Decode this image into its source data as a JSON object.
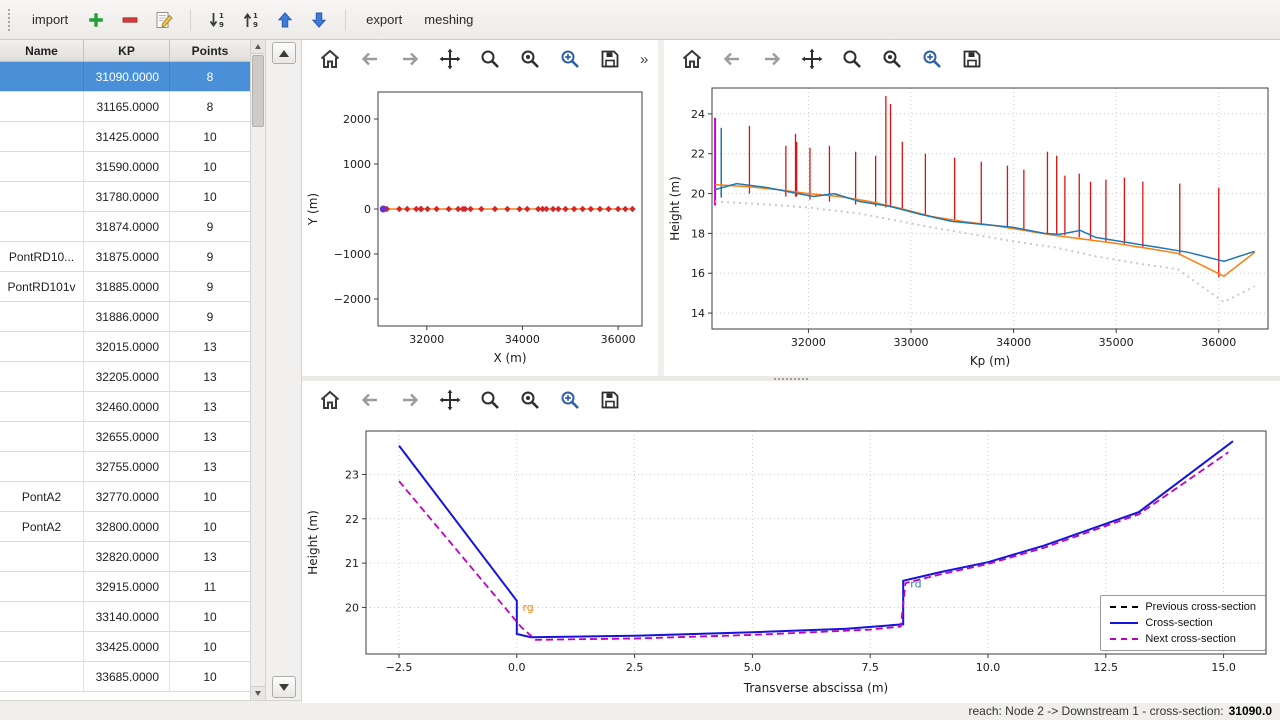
{
  "toolbar": {
    "import_label": "import",
    "export_label": "export",
    "meshing_label": "meshing"
  },
  "nav_toolbar": {
    "buttons": [
      "home",
      "back",
      "forward",
      "pan",
      "zoom",
      "subplots",
      "options",
      "save"
    ],
    "overflow": "»"
  },
  "table": {
    "columns": [
      "Name",
      "KP",
      "Points"
    ],
    "rows": [
      {
        "name": "",
        "kp": "31090.0000",
        "points": "8",
        "selected": true
      },
      {
        "name": "",
        "kp": "31165.0000",
        "points": "8",
        "selected": false
      },
      {
        "name": "",
        "kp": "31425.0000",
        "points": "10",
        "selected": false
      },
      {
        "name": "",
        "kp": "31590.0000",
        "points": "10",
        "selected": false
      },
      {
        "name": "",
        "kp": "31780.0000",
        "points": "10",
        "selected": false
      },
      {
        "name": "",
        "kp": "31874.0000",
        "points": "9",
        "selected": false
      },
      {
        "name": "PontRD10...",
        "kp": "31875.0000",
        "points": "9",
        "selected": false
      },
      {
        "name": "PontRD101v",
        "kp": "31885.0000",
        "points": "9",
        "selected": false
      },
      {
        "name": "",
        "kp": "31886.0000",
        "points": "9",
        "selected": false
      },
      {
        "name": "",
        "kp": "32015.0000",
        "points": "13",
        "selected": false
      },
      {
        "name": "",
        "kp": "32205.0000",
        "points": "13",
        "selected": false
      },
      {
        "name": "",
        "kp": "32460.0000",
        "points": "13",
        "selected": false
      },
      {
        "name": "",
        "kp": "32655.0000",
        "points": "13",
        "selected": false
      },
      {
        "name": "",
        "kp": "32755.0000",
        "points": "13",
        "selected": false
      },
      {
        "name": "PontA2",
        "kp": "32770.0000",
        "points": "10",
        "selected": false
      },
      {
        "name": "PontA2",
        "kp": "32800.0000",
        "points": "10",
        "selected": false
      },
      {
        "name": "",
        "kp": "32820.0000",
        "points": "13",
        "selected": false
      },
      {
        "name": "",
        "kp": "32915.0000",
        "points": "11",
        "selected": false
      },
      {
        "name": "",
        "kp": "33140.0000",
        "points": "10",
        "selected": false
      },
      {
        "name": "",
        "kp": "33425.0000",
        "points": "10",
        "selected": false
      },
      {
        "name": "",
        "kp": "33685.0000",
        "points": "10",
        "selected": false
      }
    ]
  },
  "chart_data": [
    {
      "id": "plan",
      "type": "line",
      "title": "",
      "xlabel": "X (m)",
      "ylabel": "Y (m)",
      "xlim": [
        30980,
        36500
      ],
      "ylim": [
        -2600,
        2600
      ],
      "xticks": [
        32000,
        34000,
        36000
      ],
      "xtick_labels": [
        "32000",
        "34000",
        "36000"
      ],
      "yticks": [
        -2000,
        -1000,
        0,
        1000,
        2000
      ],
      "ytick_labels": [
        "−2000",
        "−1000",
        "0",
        "1000",
        "2000"
      ],
      "grid": false,
      "series": [
        {
          "name": "river-axis",
          "color": "#ff7f0e",
          "width": 1.4,
          "x": [
            31090,
            31165,
            31425,
            31590,
            31780,
            31874,
            31885,
            32015,
            32205,
            32460,
            32655,
            32755,
            32800,
            32915,
            33140,
            33425,
            33685,
            33940,
            34100,
            34330,
            34420,
            34500,
            34640,
            34750,
            34900,
            35080,
            35260,
            35430,
            35620,
            35800,
            36000,
            36150,
            36300
          ],
          "y_const": 0,
          "marker": {
            "shape": "diamond",
            "color": "#d62728",
            "size": 3.2
          }
        },
        {
          "name": "selected-cross-section-point",
          "color": "none",
          "x": [
            31090
          ],
          "y": [
            0
          ],
          "marker": {
            "shape": "circle",
            "color": "#6633cc",
            "size": 3.5
          }
        }
      ]
    },
    {
      "id": "profile",
      "type": "line",
      "title": "",
      "xlabel": "Kp (m)",
      "ylabel": "Height (m)",
      "xlim": [
        31060,
        36480
      ],
      "ylim": [
        13.2,
        25.3
      ],
      "xticks": [
        32000,
        33000,
        34000,
        35000,
        36000
      ],
      "xtick_labels": [
        "32000",
        "33000",
        "34000",
        "35000",
        "36000"
      ],
      "yticks": [
        14,
        16,
        18,
        20,
        22,
        24
      ],
      "ytick_labels": [
        "14",
        "16",
        "18",
        "20",
        "22",
        "24"
      ],
      "grid": true,
      "segments": [
        {
          "x": 31090,
          "y0": 19.4,
          "y1": 23.8,
          "color": "#cc00cc",
          "width": 2
        },
        {
          "x": 31150,
          "y0": 19.8,
          "y1": 23.3,
          "color": "#1f77b4",
          "width": 1.5
        },
        {
          "x": 31425,
          "y0": 20.0,
          "y1": 23.4
        },
        {
          "x": 31780,
          "y0": 19.85,
          "y1": 22.4
        },
        {
          "x": 31874,
          "y0": 19.85,
          "y1": 23.0
        },
        {
          "x": 31885,
          "y0": 19.85,
          "y1": 22.6
        },
        {
          "x": 32015,
          "y0": 19.7,
          "y1": 22.3
        },
        {
          "x": 32205,
          "y0": 19.6,
          "y1": 22.4
        },
        {
          "x": 32460,
          "y0": 19.45,
          "y1": 22.1
        },
        {
          "x": 32655,
          "y0": 19.35,
          "y1": 21.9
        },
        {
          "x": 32755,
          "y0": 19.3,
          "y1": 24.9
        },
        {
          "x": 32800,
          "y0": 19.3,
          "y1": 24.5
        },
        {
          "x": 32915,
          "y0": 19.2,
          "y1": 22.6
        },
        {
          "x": 33140,
          "y0": 18.95,
          "y1": 22.0
        },
        {
          "x": 33425,
          "y0": 18.65,
          "y1": 21.8
        },
        {
          "x": 33685,
          "y0": 18.5,
          "y1": 21.6
        },
        {
          "x": 33940,
          "y0": 18.3,
          "y1": 21.4
        },
        {
          "x": 34100,
          "y0": 18.2,
          "y1": 21.2
        },
        {
          "x": 34330,
          "y0": 18.0,
          "y1": 22.1
        },
        {
          "x": 34420,
          "y0": 17.95,
          "y1": 21.9
        },
        {
          "x": 34500,
          "y0": 17.9,
          "y1": 20.9
        },
        {
          "x": 34640,
          "y0": 17.8,
          "y1": 21.0
        },
        {
          "x": 34750,
          "y0": 17.7,
          "y1": 20.6
        },
        {
          "x": 34900,
          "y0": 17.6,
          "y1": 20.7
        },
        {
          "x": 35080,
          "y0": 17.45,
          "y1": 20.8
        },
        {
          "x": 35260,
          "y0": 17.3,
          "y1": 20.6
        },
        {
          "x": 35620,
          "y0": 16.9,
          "y1": 20.5
        },
        {
          "x": 36000,
          "y0": 15.8,
          "y1": 20.3
        }
      ],
      "series": [
        {
          "name": "bed-dotted-line",
          "color": "#c9c9c9",
          "width": 2,
          "dash": "2,4",
          "x": [
            31090,
            31600,
            32000,
            32500,
            32800,
            33200,
            33600,
            34000,
            34400,
            34800,
            35200,
            35600,
            36050,
            36350
          ],
          "y": [
            19.6,
            19.45,
            19.3,
            19.0,
            18.7,
            18.3,
            17.95,
            17.6,
            17.3,
            16.85,
            16.5,
            16.2,
            14.55,
            15.35
          ]
        },
        {
          "name": "bank-line-orange",
          "color": "#ff7f0e",
          "width": 1.5,
          "x": [
            31090,
            31400,
            31700,
            32000,
            32300,
            32600,
            32900,
            33200,
            33500,
            33800,
            34100,
            34400,
            34700,
            35000,
            35300,
            35600,
            36050,
            36350
          ],
          "y": [
            20.45,
            20.35,
            20.2,
            20.0,
            19.85,
            19.6,
            19.25,
            18.85,
            18.6,
            18.4,
            18.15,
            17.9,
            17.7,
            17.5,
            17.25,
            17.0,
            15.85,
            17.05
          ]
        },
        {
          "name": "bank-line-blue",
          "color": "#1f77b4",
          "width": 1.5,
          "x": [
            31090,
            31300,
            31600,
            31900,
            32050,
            32250,
            32500,
            32800,
            33100,
            33400,
            33700,
            34000,
            34300,
            34450,
            34650,
            34800,
            35100,
            35400,
            35700,
            36050,
            36350
          ],
          "y": [
            20.2,
            20.5,
            20.3,
            20.0,
            19.85,
            20.0,
            19.6,
            19.35,
            18.95,
            18.6,
            18.45,
            18.3,
            18.0,
            17.95,
            18.15,
            17.8,
            17.55,
            17.3,
            17.05,
            16.6,
            17.1
          ]
        }
      ]
    },
    {
      "id": "cross",
      "type": "line",
      "title": "",
      "xlabel": "Transverse abscissa (m)",
      "ylabel": "Height (m)",
      "xlim": [
        -3.2,
        15.9
      ],
      "ylim": [
        18.95,
        23.98
      ],
      "xticks": [
        -2.5,
        0,
        2.5,
        5,
        7.5,
        10,
        12.5,
        15
      ],
      "xtick_labels": [
        "−2.5",
        "0.0",
        "2.5",
        "5.0",
        "7.5",
        "10.0",
        "12.5",
        "15.0"
      ],
      "yticks": [
        20,
        21,
        22,
        23
      ],
      "ytick_labels": [
        "20",
        "21",
        "22",
        "23"
      ],
      "grid": true,
      "series": [
        {
          "name": "previous-cross-section",
          "color": "#000000",
          "width": 2,
          "dash": "7,4",
          "x": [],
          "y": []
        },
        {
          "name": "current-cross-section",
          "color": "#1414dd",
          "width": 2,
          "x": [
            -2.5,
            0.0,
            0.0,
            0.3,
            2.5,
            5.0,
            7.0,
            8.2,
            8.2,
            9.0,
            10.0,
            11.2,
            12.4,
            13.2,
            15.2
          ],
          "y": [
            23.65,
            20.15,
            19.4,
            19.33,
            19.36,
            19.44,
            19.52,
            19.62,
            20.6,
            20.8,
            21.02,
            21.4,
            21.85,
            22.15,
            23.75
          ]
        },
        {
          "name": "next-cross-section",
          "color": "#c000c0",
          "width": 1.8,
          "dash": "7,4",
          "x": [
            -2.5,
            0.1,
            0.4,
            2.5,
            5.0,
            7.5,
            8.15,
            8.25,
            9.0,
            10.0,
            11.2,
            12.4,
            13.2,
            15.1
          ],
          "y": [
            22.85,
            19.55,
            19.27,
            19.3,
            19.38,
            19.5,
            19.57,
            20.55,
            20.75,
            20.98,
            21.35,
            21.8,
            22.1,
            23.5
          ]
        }
      ],
      "annotations": [
        {
          "text": "rg",
          "x": 0.12,
          "y": 19.92,
          "color": "#ff7f0e"
        },
        {
          "text": "rd",
          "x": 8.35,
          "y": 20.45,
          "color": "#3a7ca8"
        }
      ],
      "legend": {
        "position": "bottom-right",
        "entries": [
          {
            "label": "Previous cross-section",
            "color": "#000000",
            "dashed": true
          },
          {
            "label": "Cross-section",
            "color": "#1414dd",
            "dashed": false
          },
          {
            "label": "Next cross-section",
            "color": "#c000c0",
            "dashed": true
          }
        ]
      }
    }
  ],
  "status": {
    "prefix": "reach: Node 2 -> Downstream 1 - cross-section:",
    "value": "31090.0"
  }
}
